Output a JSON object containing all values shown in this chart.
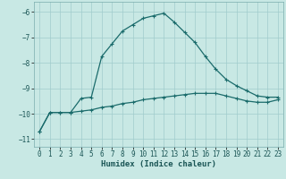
{
  "xlabel": "Humidex (Indice chaleur)",
  "xlim": [
    -0.5,
    23.5
  ],
  "ylim": [
    -11.3,
    -5.6
  ],
  "yticks": [
    -11,
    -10,
    -9,
    -8,
    -7,
    -6
  ],
  "xticks": [
    0,
    1,
    2,
    3,
    4,
    5,
    6,
    7,
    8,
    9,
    10,
    11,
    12,
    13,
    14,
    15,
    16,
    17,
    18,
    19,
    20,
    21,
    22,
    23
  ],
  "bg_color": "#c8e8e4",
  "grid_color": "#a0cccc",
  "line_color": "#1a6b6b",
  "line1_x": [
    0,
    1,
    2,
    3,
    4,
    5,
    6,
    7,
    8,
    9,
    10,
    11,
    12,
    13,
    14,
    15,
    16,
    17,
    18,
    19,
    20,
    21,
    22,
    23
  ],
  "line1_y": [
    -10.7,
    -9.95,
    -9.95,
    -9.95,
    -9.4,
    -9.35,
    -7.75,
    -7.25,
    -6.75,
    -6.5,
    -6.25,
    -6.15,
    -6.05,
    -6.4,
    -6.8,
    -7.2,
    -7.75,
    -8.25,
    -8.65,
    -8.9,
    -9.1,
    -9.3,
    -9.35,
    -9.35
  ],
  "line2_x": [
    0,
    1,
    2,
    3,
    4,
    5,
    6,
    7,
    8,
    9,
    10,
    11,
    12,
    13,
    14,
    15,
    16,
    17,
    18,
    19,
    20,
    21,
    22,
    23
  ],
  "line2_y": [
    -10.7,
    -9.95,
    -9.95,
    -9.95,
    -9.9,
    -9.85,
    -9.75,
    -9.7,
    -9.6,
    -9.55,
    -9.45,
    -9.4,
    -9.35,
    -9.3,
    -9.25,
    -9.2,
    -9.2,
    -9.2,
    -9.3,
    -9.4,
    -9.5,
    -9.55,
    -9.55,
    -9.45
  ]
}
